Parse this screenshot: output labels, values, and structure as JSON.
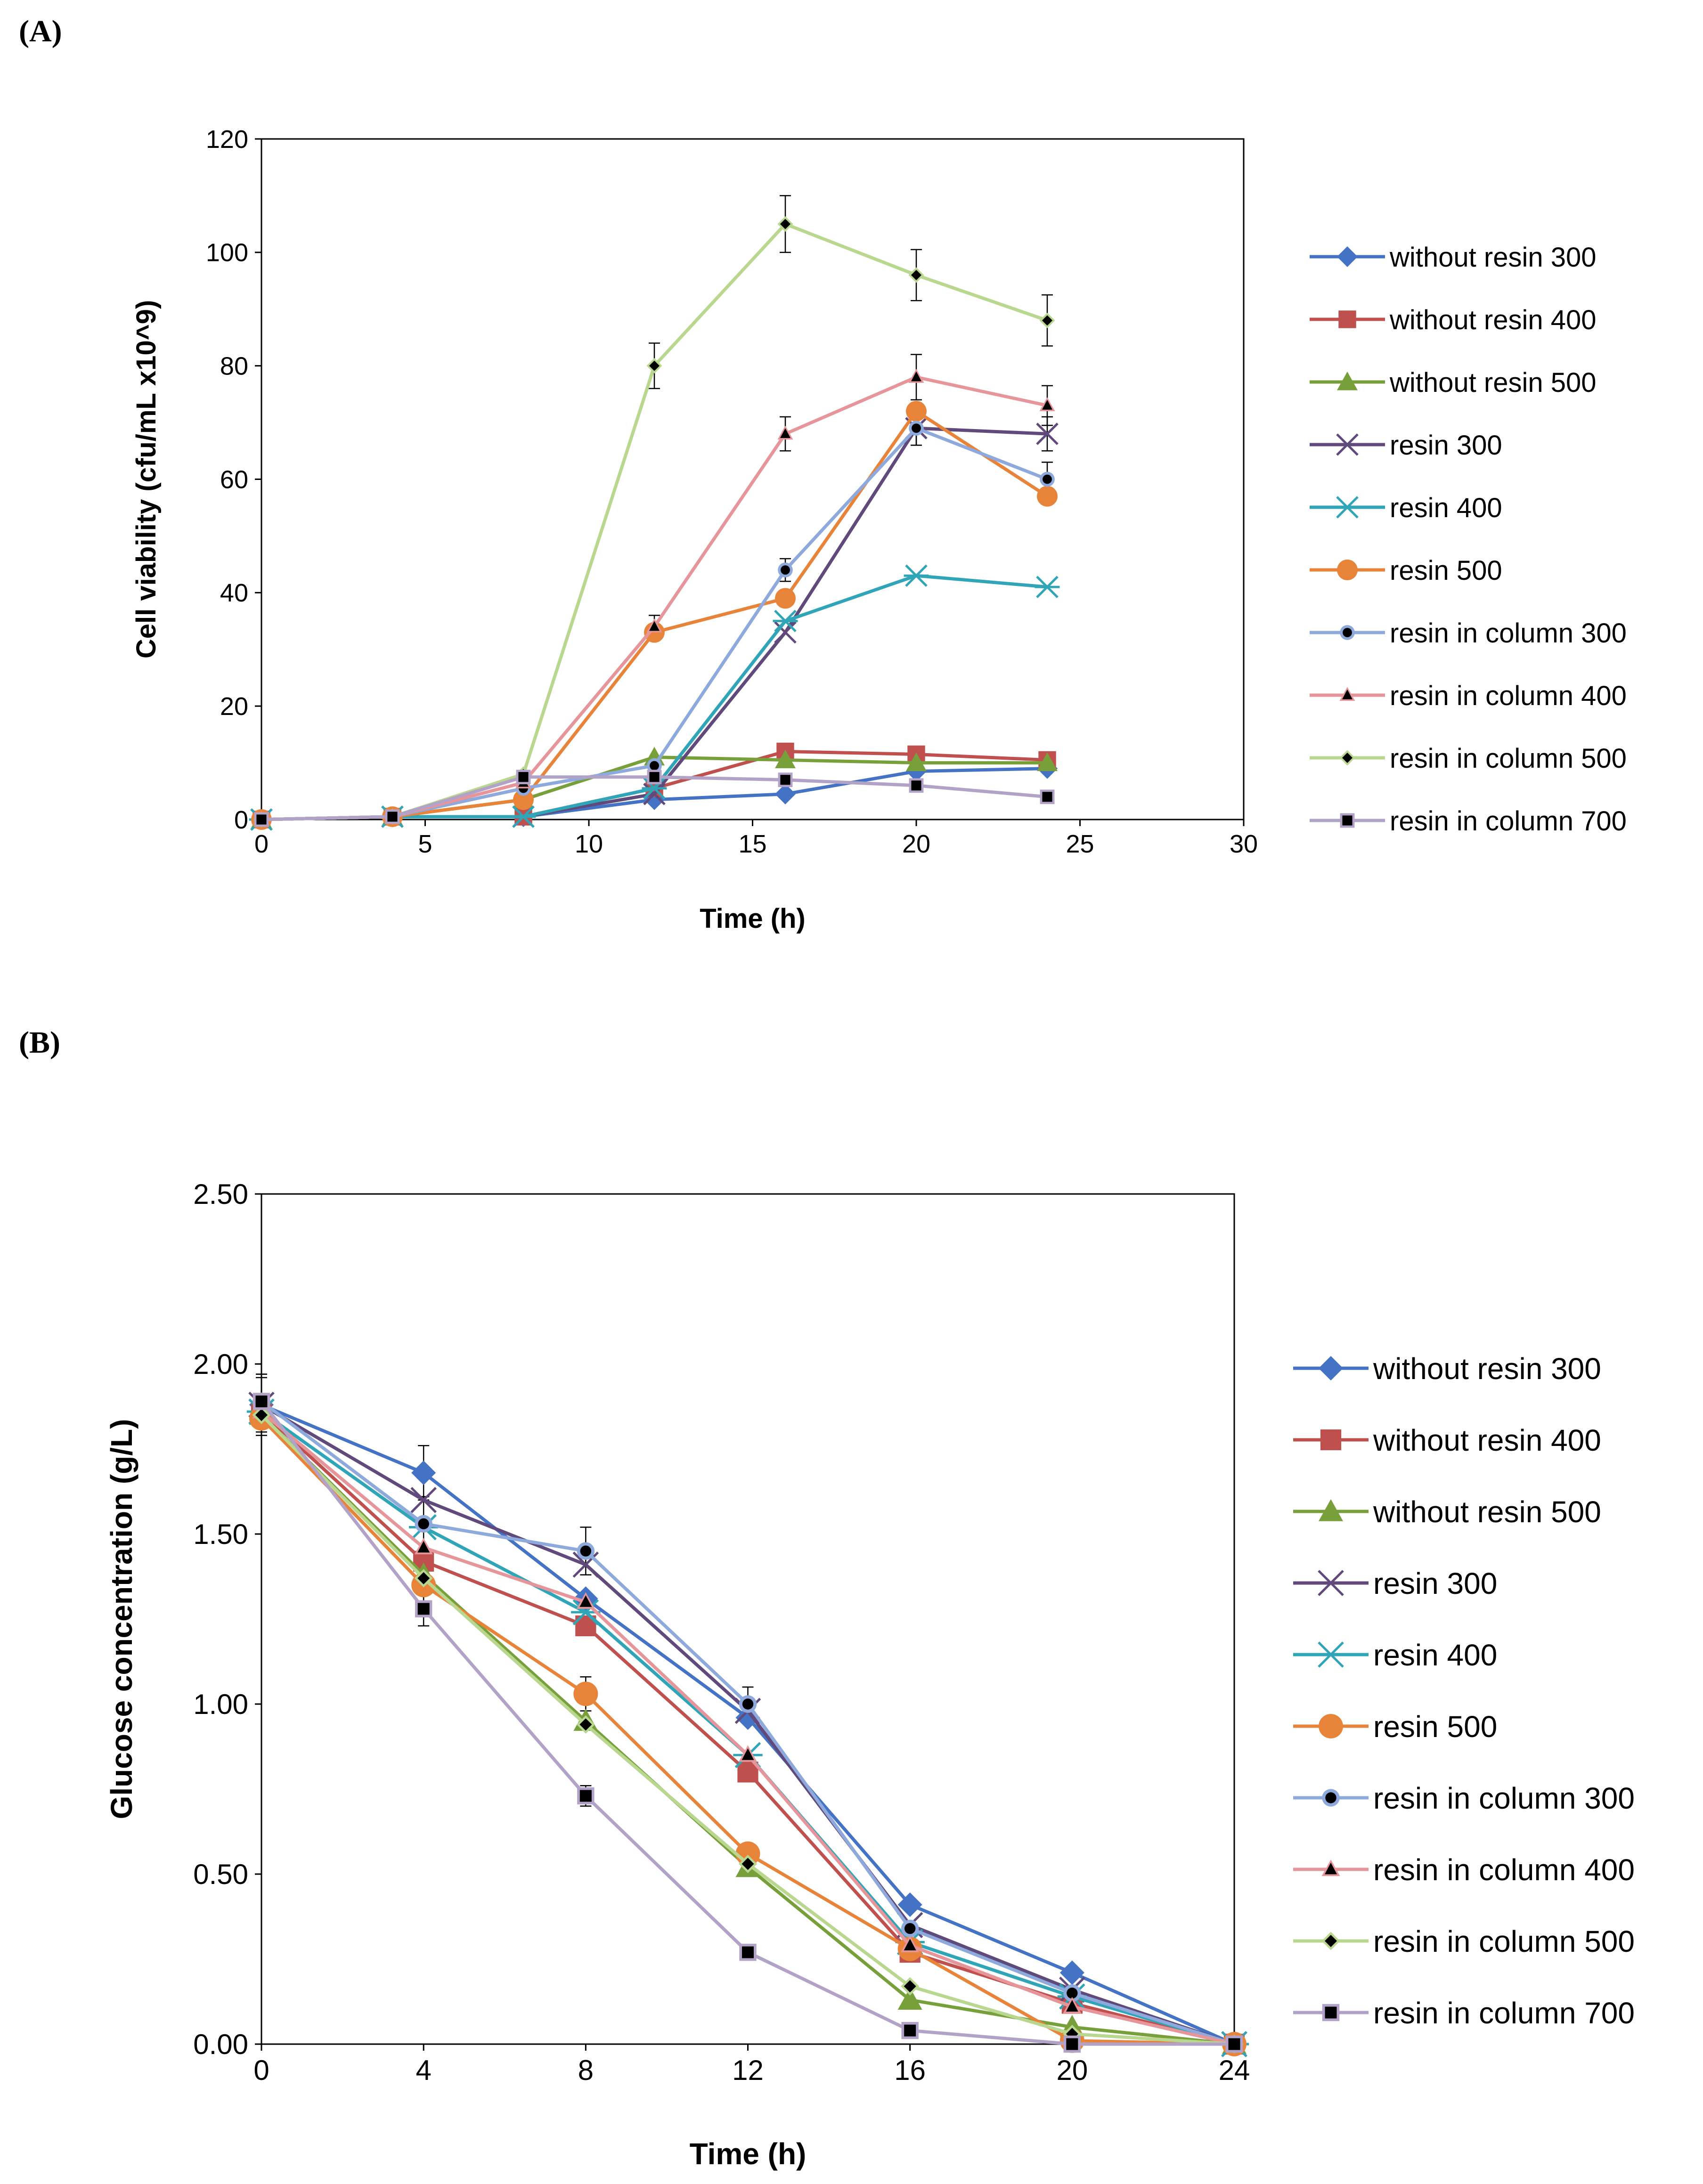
{
  "chart_data": [
    {
      "panel_label": "(A)",
      "type": "line",
      "xlabel": "Time (h)",
      "ylabel": "Cell viability  (cfu/mL x10^9)",
      "xlim": [
        0,
        30
      ],
      "ylim": [
        0,
        120
      ],
      "xticks": [
        "0",
        "5",
        "10",
        "15",
        "20",
        "25",
        "30"
      ],
      "yticks": [
        "0",
        "20",
        "40",
        "60",
        "80",
        "100",
        "120"
      ],
      "x": [
        0,
        4,
        8,
        12,
        16,
        20,
        24
      ],
      "grid": false,
      "legend_position": "right",
      "series": [
        {
          "name": "without resin 300",
          "color": "#4472C4",
          "marker": "diamond",
          "values": [
            0,
            0.5,
            0.5,
            3.5,
            4.5,
            8.5,
            9
          ]
        },
        {
          "name": "without resin 400",
          "color": "#C0504D",
          "marker": "square",
          "values": [
            0,
            0.5,
            0.5,
            5.5,
            12,
            11.5,
            10.5
          ]
        },
        {
          "name": "without resin 500",
          "color": "#77A03A",
          "marker": "triangle",
          "values": [
            0,
            0.5,
            3.5,
            11,
            10.5,
            10,
            10
          ]
        },
        {
          "name": "resin 300",
          "color": "#604A7B",
          "marker": "x",
          "values": [
            0,
            0.5,
            0.5,
            4.5,
            33,
            69,
            68
          ]
        },
        {
          "name": "resin 400",
          "color": "#31A5B8",
          "marker": "star",
          "values": [
            0,
            0.5,
            0.5,
            5.5,
            35,
            43,
            41
          ]
        },
        {
          "name": "resin 500",
          "color": "#E8843A",
          "marker": "circle",
          "values": [
            0,
            0.5,
            3.5,
            33,
            39,
            72,
            57
          ]
        },
        {
          "name": "resin in column 300",
          "color": "#8EA9DB",
          "marker": "dot",
          "values": [
            0,
            0.5,
            5.5,
            9.5,
            44,
            69,
            60
          ]
        },
        {
          "name": "resin in column 400",
          "color": "#E6969A",
          "marker": "smalltriangle",
          "values": [
            0,
            0.5,
            6.5,
            34,
            68,
            78,
            73
          ]
        },
        {
          "name": "resin in column 500",
          "color": "#B9D78F",
          "marker": "smalldiamond",
          "values": [
            0,
            0.5,
            8,
            80,
            105,
            96,
            88
          ]
        },
        {
          "name": "resin in column 700",
          "color": "#B3A2C7",
          "marker": "smallsquare",
          "values": [
            0,
            0.5,
            7.5,
            7.5,
            7,
            6,
            4
          ]
        }
      ],
      "error_bars": {
        "resin in column 500": [
          0,
          0,
          0,
          4,
          5,
          4.5,
          4.5
        ],
        "resin in column 400": [
          0,
          0,
          0,
          2,
          3,
          4,
          3.5
        ],
        "resin in column 300": [
          0,
          0,
          0,
          0,
          2,
          3,
          3
        ],
        "resin 300": [
          0,
          0,
          0,
          0,
          0,
          3,
          3
        ]
      }
    },
    {
      "panel_label": "(B)",
      "type": "line",
      "xlabel": "Time (h)",
      "ylabel": "Glucose concentration (g/L)",
      "xlim": [
        0,
        24
      ],
      "ylim": [
        0,
        2.5
      ],
      "xticks": [
        "0",
        "4",
        "8",
        "12",
        "16",
        "20",
        "24"
      ],
      "yticks": [
        "0.00",
        "0.50",
        "1.00",
        "1.50",
        "2.00",
        "2.50"
      ],
      "x": [
        0,
        4,
        8,
        12,
        16,
        20,
        24
      ],
      "grid": false,
      "legend_position": "right",
      "series": [
        {
          "name": "without resin 300",
          "color": "#4472C4",
          "marker": "diamond",
          "values": [
            1.88,
            1.68,
            1.31,
            0.96,
            0.41,
            0.21,
            0.0
          ]
        },
        {
          "name": "without resin 400",
          "color": "#C0504D",
          "marker": "square",
          "values": [
            1.86,
            1.42,
            1.23,
            0.8,
            0.27,
            0.12,
            0.0
          ]
        },
        {
          "name": "without resin 500",
          "color": "#77A03A",
          "marker": "triangle",
          "values": [
            1.85,
            1.38,
            0.95,
            0.52,
            0.13,
            0.05,
            0.0
          ]
        },
        {
          "name": "resin 300",
          "color": "#604A7B",
          "marker": "x",
          "values": [
            1.88,
            1.6,
            1.41,
            0.98,
            0.35,
            0.16,
            0.0
          ]
        },
        {
          "name": "resin 400",
          "color": "#31A5B8",
          "marker": "star",
          "values": [
            1.86,
            1.52,
            1.27,
            0.85,
            0.3,
            0.14,
            0.0
          ]
        },
        {
          "name": "resin 500",
          "color": "#E8843A",
          "marker": "circle",
          "values": [
            1.84,
            1.35,
            1.03,
            0.56,
            0.28,
            0.01,
            0.0
          ]
        },
        {
          "name": "resin in column 300",
          "color": "#8EA9DB",
          "marker": "dot",
          "values": [
            1.89,
            1.53,
            1.45,
            1.0,
            0.34,
            0.15,
            0.0
          ]
        },
        {
          "name": "resin in column 400",
          "color": "#E6969A",
          "marker": "smalltriangle",
          "values": [
            1.86,
            1.46,
            1.3,
            0.85,
            0.29,
            0.11,
            0.0
          ]
        },
        {
          "name": "resin in column 500",
          "color": "#B9D78F",
          "marker": "smalldiamond",
          "values": [
            1.85,
            1.37,
            0.94,
            0.53,
            0.17,
            0.03,
            0.0
          ]
        },
        {
          "name": "resin in column 700",
          "color": "#B3A2C7",
          "marker": "smallsquare",
          "values": [
            1.89,
            1.28,
            0.73,
            0.27,
            0.04,
            0.0,
            0.0
          ]
        }
      ],
      "error_bars": {
        "resin in column 700": [
          0.08,
          0.05,
          0.03,
          0.0,
          0.0,
          0.0,
          0.0
        ],
        "resin in column 300": [
          0.08,
          0.08,
          0.07,
          0.05,
          0.0,
          0.0,
          0.0
        ],
        "without resin 300": [
          0.08,
          0.08,
          0.0,
          0.0,
          0.0,
          0.0,
          0.0
        ],
        "resin 500": [
          0.05,
          0.05,
          0.05,
          0.0,
          0.0,
          0.0,
          0.0
        ]
      }
    }
  ]
}
